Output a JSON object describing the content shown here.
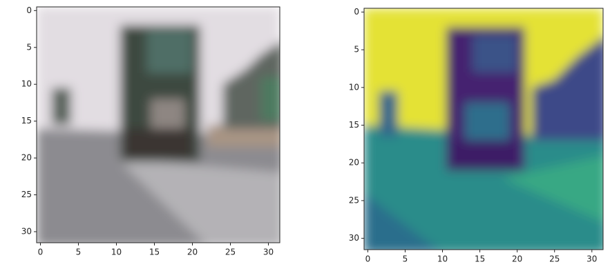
{
  "chart_data": [
    {
      "type": "image",
      "xlim": [
        -0.5,
        31.5
      ],
      "ylim": [
        31.5,
        -0.5
      ],
      "xticks": [
        0,
        5,
        10,
        15,
        20,
        25,
        30
      ],
      "yticks": [
        0,
        5,
        10,
        15,
        20,
        25,
        30
      ]
    },
    {
      "type": "image",
      "xlim": [
        -0.5,
        31.5
      ],
      "ylim": [
        31.5,
        -0.5
      ],
      "xticks": [
        0,
        5,
        10,
        15,
        20,
        25,
        30
      ],
      "yticks": [
        0,
        5,
        10,
        15,
        20,
        25,
        30
      ]
    }
  ]
}
